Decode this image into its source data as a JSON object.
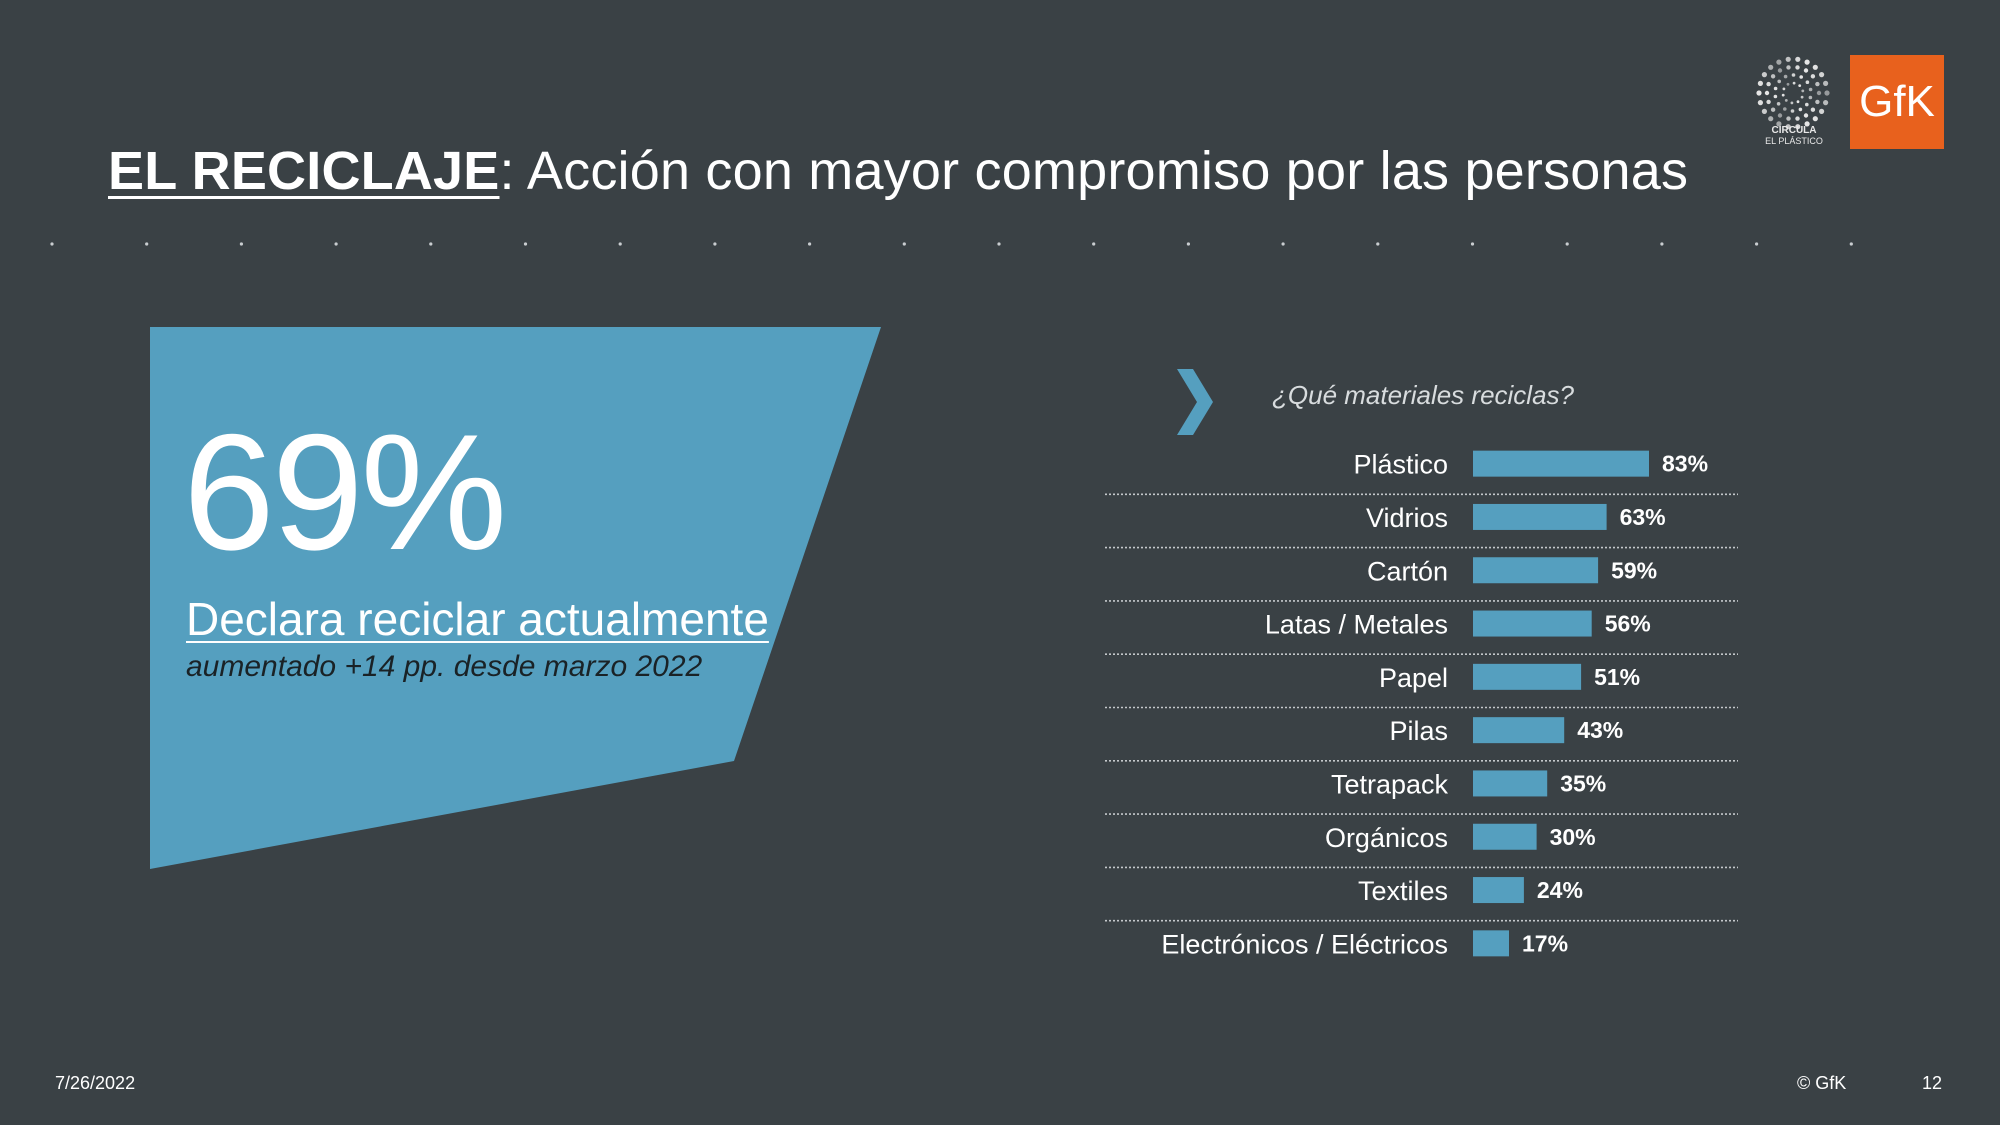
{
  "title": {
    "bold": "EL RECICLAJE",
    "rest": ": Acción con mayor compromiso por las personas"
  },
  "logos": {
    "circula_line1": "CIRCULA",
    "circula_line2": "EL PLÁSTICO",
    "gfk": "GfK"
  },
  "hero": {
    "percent": "69%",
    "label": "Declara reciclar actualmente",
    "note": "aumentado +14 pp. desde marzo 2022"
  },
  "colors": {
    "background": "#3a4145",
    "accent_blue": "#559fbf",
    "gfk_orange": "#e8611d"
  },
  "chart_data": {
    "type": "bar",
    "orientation": "horizontal",
    "title": "¿Qué materiales reciclas?",
    "categories": [
      "Plástico",
      "Vidrios",
      "Cartón",
      "Latas / Metales",
      "Papel",
      "Pilas",
      "Tetrapack",
      "Orgánicos",
      "Textiles",
      "Electrónicos / Eléctricos"
    ],
    "values": [
      83,
      63,
      59,
      56,
      51,
      43,
      35,
      30,
      24,
      17
    ],
    "value_labels": [
      "83%",
      "63%",
      "59%",
      "56%",
      "51%",
      "43%",
      "35%",
      "30%",
      "24%",
      "17%"
    ],
    "unit": "%",
    "xlim": [
      0,
      100
    ],
    "grid": false
  },
  "footer": {
    "date": "7/26/2022",
    "copyright": "© GfK",
    "page": "12"
  }
}
